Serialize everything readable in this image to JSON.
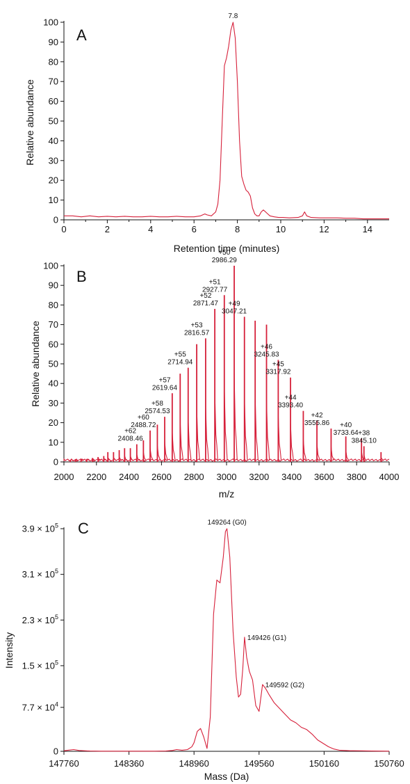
{
  "colors": {
    "trace": "#d6203a",
    "axis": "#111111",
    "background": "#ffffff"
  },
  "chart_data": [
    {
      "type": "line",
      "panel_label": "A",
      "xlabel": "Retention time (minutes)",
      "ylabel": "Relative abundance",
      "xlim": [
        0,
        15
      ],
      "ylim": [
        0,
        100
      ],
      "xticks": [
        0,
        2,
        4,
        6,
        8,
        10,
        12,
        14
      ],
      "xtick_labels": [
        "0",
        "2",
        "4",
        "6",
        "8",
        "10",
        "12",
        "14"
      ],
      "yticks": [
        0,
        10,
        20,
        30,
        40,
        50,
        60,
        70,
        80,
        90,
        100
      ],
      "ytick_labels": [
        "0",
        "10",
        "20",
        "30",
        "40",
        "50",
        "60",
        "70",
        "80",
        "90",
        "100"
      ],
      "annotations": [
        {
          "x": 7.8,
          "y": 100,
          "text": "7.8"
        }
      ],
      "series": [
        {
          "x": [
            0,
            0.4,
            0.8,
            1.2,
            1.6,
            2.0,
            2.4,
            2.8,
            3.2,
            3.6,
            4.0,
            4.4,
            4.8,
            5.2,
            5.6,
            6.0,
            6.3,
            6.5,
            6.6,
            6.8,
            7.0,
            7.1,
            7.2,
            7.3,
            7.4,
            7.5,
            7.6,
            7.7,
            7.8,
            7.9,
            8.0,
            8.1,
            8.2,
            8.3,
            8.4,
            8.5,
            8.6,
            8.7,
            8.8,
            8.9,
            9.0,
            9.1,
            9.2,
            9.3,
            9.4,
            9.5,
            9.7,
            9.9,
            10.1,
            10.4,
            10.8,
            11.0,
            11.1,
            11.2,
            11.4,
            11.8,
            12.2,
            12.6,
            13.0,
            13.4,
            13.8,
            14.2,
            14.6,
            15.0
          ],
          "y": [
            2,
            2,
            1.5,
            2,
            1.5,
            1.8,
            1.5,
            1.8,
            1.5,
            1.5,
            1.8,
            1.5,
            1.5,
            1.8,
            1.5,
            1.5,
            2,
            3,
            2.5,
            2,
            4,
            8,
            20,
            50,
            78,
            82,
            88,
            96,
            100,
            92,
            70,
            40,
            22,
            18,
            15,
            14,
            12,
            6,
            3,
            2,
            2,
            4,
            5,
            4,
            3,
            2,
            1.5,
            1.2,
            1.2,
            1,
            1.2,
            2,
            4,
            2,
            1.2,
            1,
            1,
            1,
            0.8,
            0.8,
            0.5,
            0.5,
            0.5,
            0.5
          ]
        }
      ]
    },
    {
      "type": "bar",
      "panel_label": "B",
      "xlabel": "m/z",
      "ylabel": "Relative abundance",
      "xlim": [
        2000,
        4000
      ],
      "ylim": [
        0,
        100
      ],
      "xticks": [
        2000,
        2200,
        2400,
        2600,
        2800,
        3000,
        3200,
        3400,
        3600,
        3800,
        4000
      ],
      "xtick_labels": [
        "2000",
        "2200",
        "2400",
        "2600",
        "2800",
        "3000",
        "3200",
        "3400",
        "3600",
        "3800",
        "4000"
      ],
      "yticks": [
        0,
        10,
        20,
        30,
        40,
        50,
        60,
        70,
        80,
        90,
        100
      ],
      "ytick_labels": [
        "0",
        "10",
        "20",
        "30",
        "40",
        "50",
        "60",
        "70",
        "80",
        "90",
        "100"
      ],
      "sticks": [
        {
          "x": 2040,
          "y": 1
        },
        {
          "x": 2070,
          "y": 1
        },
        {
          "x": 2105,
          "y": 1.5
        },
        {
          "x": 2140,
          "y": 1.5
        },
        {
          "x": 2175,
          "y": 2
        },
        {
          "x": 2210,
          "y": 2.5
        },
        {
          "x": 2245,
          "y": 3
        },
        {
          "x": 2270,
          "y": 5
        },
        {
          "x": 2305,
          "y": 5
        },
        {
          "x": 2340,
          "y": 6
        },
        {
          "x": 2373,
          "y": 7
        },
        {
          "x": 2408.46,
          "y": 7
        },
        {
          "x": 2448,
          "y": 9
        },
        {
          "x": 2488.72,
          "y": 11
        },
        {
          "x": 2530,
          "y": 16
        },
        {
          "x": 2574.53,
          "y": 19
        },
        {
          "x": 2619.64,
          "y": 23
        },
        {
          "x": 2666,
          "y": 35
        },
        {
          "x": 2714.94,
          "y": 45
        },
        {
          "x": 2764,
          "y": 48
        },
        {
          "x": 2816.57,
          "y": 60
        },
        {
          "x": 2871.47,
          "y": 63
        },
        {
          "x": 2927.77,
          "y": 78
        },
        {
          "x": 2986.29,
          "y": 85
        },
        {
          "x": 3047.21,
          "y": 100
        },
        {
          "x": 3110,
          "y": 74
        },
        {
          "x": 3176,
          "y": 72
        },
        {
          "x": 3245.83,
          "y": 70
        },
        {
          "x": 3317.92,
          "y": 52
        },
        {
          "x": 3393.4,
          "y": 43
        },
        {
          "x": 3472,
          "y": 26
        },
        {
          "x": 3555.86,
          "y": 21
        },
        {
          "x": 3643,
          "y": 17
        },
        {
          "x": 3733.64,
          "y": 13
        },
        {
          "x": 3830,
          "y": 12
        },
        {
          "x": 3845.1,
          "y": 8
        },
        {
          "x": 3950,
          "y": 5
        }
      ],
      "annotations": [
        {
          "x": 2986.29,
          "y": 100,
          "charge": "+50",
          "mz": "2986.29"
        },
        {
          "x": 2927.77,
          "y": 85,
          "charge": "+51",
          "mz": "2927.77"
        },
        {
          "x": 3047.21,
          "y": 74,
          "charge": "+49",
          "mz": "3047.21"
        },
        {
          "x": 2871.47,
          "y": 78,
          "charge": "+52",
          "mz": "2871.47"
        },
        {
          "x": 2816.57,
          "y": 63,
          "charge": "+53",
          "mz": "2816.57"
        },
        {
          "x": 2714.94,
          "y": 48,
          "charge": "+55",
          "mz": "2714.94"
        },
        {
          "x": 2619.64,
          "y": 35,
          "charge": "+57",
          "mz": "2619.64"
        },
        {
          "x": 2574.53,
          "y": 23,
          "charge": "+58",
          "mz": "2574.53"
        },
        {
          "x": 2488.72,
          "y": 16,
          "charge": "+60",
          "mz": "2488.72"
        },
        {
          "x": 2408.46,
          "y": 9,
          "charge": "+62",
          "mz": "2408.46"
        },
        {
          "x": 3245.83,
          "y": 52,
          "charge": "+46",
          "mz": "3245.83"
        },
        {
          "x": 3317.92,
          "y": 43,
          "charge": "+45",
          "mz": "3317.92"
        },
        {
          "x": 3393.4,
          "y": 26,
          "charge": "+44",
          "mz": "3393.40"
        },
        {
          "x": 3555.86,
          "y": 17,
          "charge": "+42",
          "mz": "3555.86"
        },
        {
          "x": 3733.64,
          "y": 12,
          "charge": "+40",
          "mz": "3733.64"
        },
        {
          "x": 3845.1,
          "y": 8,
          "charge": "+38",
          "mz": "3845.10"
        }
      ]
    },
    {
      "type": "line",
      "panel_label": "C",
      "xlabel": "Mass (Da)",
      "ylabel": "Intensity",
      "xlim": [
        147760,
        150760
      ],
      "ylim": [
        0,
        390000
      ],
      "xticks": [
        147760,
        148360,
        148960,
        149560,
        150160,
        150760
      ],
      "xtick_labels": [
        "147760",
        "148360",
        "148960",
        "149560",
        "150160",
        "150760"
      ],
      "yticks": [
        0,
        77000,
        150000,
        230000,
        310000,
        390000
      ],
      "ytick_labels": [
        {
          "text": "0",
          "mantissa": "0",
          "exp": ""
        },
        {
          "text": "7.7 × 10^4",
          "mantissa": "7.7 × 10",
          "exp": "4"
        },
        {
          "text": "1.5 × 10^5",
          "mantissa": "1.5 × 10",
          "exp": "5"
        },
        {
          "text": "2.3 × 10^5",
          "mantissa": "2.3 × 10",
          "exp": "5"
        },
        {
          "text": "3.1 × 10^5",
          "mantissa": "3.1 × 10",
          "exp": "5"
        },
        {
          "text": "3.9 × 10^5",
          "mantissa": "3.9 × 10",
          "exp": "5"
        }
      ],
      "annotations": [
        {
          "x": 149264,
          "y": 390000,
          "text": "149264 (G0)"
        },
        {
          "x": 149426,
          "y": 200000,
          "text": "149426 (G1)"
        },
        {
          "x": 149592,
          "y": 117000,
          "text": "149592 (G2)"
        }
      ],
      "series": [
        {
          "x": [
            147760,
            147800,
            147850,
            147900,
            148000,
            148100,
            148200,
            148300,
            148400,
            148500,
            148600,
            148700,
            148760,
            148800,
            148850,
            148900,
            148940,
            148960,
            148990,
            149020,
            149050,
            149080,
            149110,
            149140,
            149170,
            149200,
            149230,
            149250,
            149264,
            149290,
            149320,
            149350,
            149370,
            149390,
            149410,
            149426,
            149445,
            149470,
            149500,
            149530,
            149560,
            149592,
            149620,
            149650,
            149700,
            149750,
            149800,
            149850,
            149900,
            149950,
            150000,
            150050,
            150100,
            150150,
            150200,
            150250,
            150300,
            150400,
            150500,
            150600,
            150760
          ],
          "y": [
            1000,
            2000,
            3000,
            1500,
            500,
            300,
            300,
            200,
            300,
            300,
            300,
            500,
            1500,
            3000,
            2000,
            3000,
            8000,
            15000,
            35000,
            40000,
            25000,
            5000,
            60000,
            240000,
            300000,
            295000,
            340000,
            385000,
            390000,
            340000,
            210000,
            130000,
            95000,
            100000,
            145000,
            200000,
            165000,
            140000,
            125000,
            80000,
            70000,
            117000,
            110000,
            100000,
            85000,
            75000,
            65000,
            55000,
            50000,
            42000,
            38000,
            30000,
            20000,
            14000,
            8000,
            4000,
            2000,
            1000,
            800,
            500,
            300
          ]
        }
      ]
    }
  ]
}
